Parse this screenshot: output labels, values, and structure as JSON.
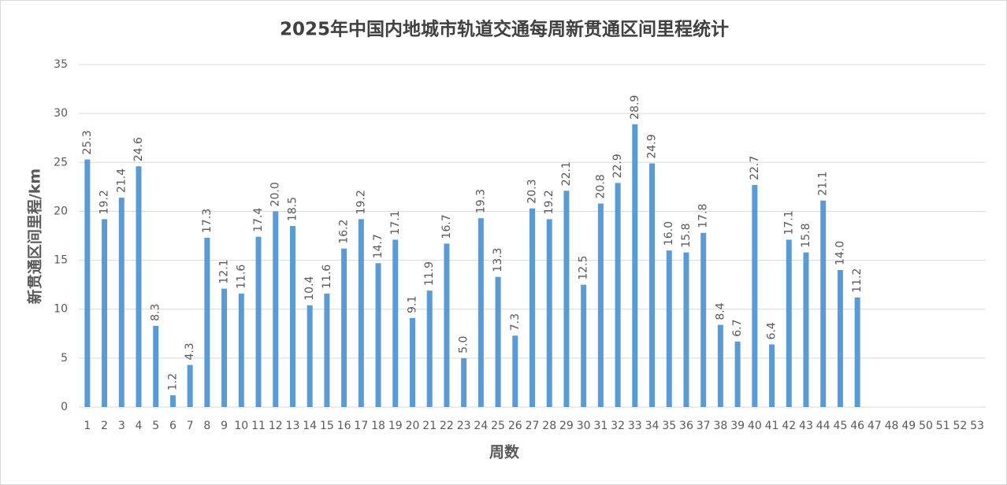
{
  "chart_data": {
    "type": "bar",
    "title": "2025年中国内地城市轨道交通每周新贯通区间里程统计",
    "x_label": "周数",
    "y_label": "新贯通区间里程/km",
    "categories": [
      "1",
      "2",
      "3",
      "4",
      "5",
      "6",
      "7",
      "8",
      "9",
      "10",
      "11",
      "12",
      "13",
      "14",
      "15",
      "16",
      "17",
      "18",
      "19",
      "20",
      "21",
      "22",
      "23",
      "24",
      "25",
      "26",
      "27",
      "28",
      "29",
      "30",
      "31",
      "32",
      "33",
      "34",
      "35",
      "36",
      "37",
      "38",
      "39",
      "40",
      "41",
      "42",
      "43",
      "44",
      "45",
      "46",
      "47",
      "48",
      "49",
      "50",
      "51",
      "52",
      "53"
    ],
    "values": [
      25.3,
      19.2,
      21.4,
      24.6,
      8.3,
      1.2,
      4.3,
      17.3,
      12.1,
      11.6,
      17.4,
      20.0,
      18.5,
      10.4,
      11.6,
      16.2,
      19.2,
      14.7,
      17.1,
      9.1,
      11.9,
      16.7,
      5.0,
      19.3,
      13.3,
      7.3,
      20.3,
      19.2,
      22.1,
      12.5,
      20.8,
      22.9,
      28.9,
      24.9,
      16.0,
      15.8,
      17.8,
      8.4,
      6.7,
      22.7,
      6.4,
      17.1,
      15.8,
      21.1,
      14.0,
      11.2,
      null,
      null,
      null,
      null,
      null,
      null,
      null
    ],
    "value_labels": [
      "25.3",
      "19.2",
      "21.4",
      "24.6",
      "8.3",
      "1.2",
      "4.3",
      "17.3",
      "12.1",
      "11.6",
      "17.4",
      "20.0",
      "18.5",
      "10.4",
      "11.6",
      "16.2",
      "19.2",
      "14.7",
      "17.1",
      "9.1",
      "11.9",
      "16.7",
      "5.0",
      "19.3",
      "13.3",
      "7.3",
      "20.3",
      "19.2",
      "22.1",
      "12.5",
      "20.8",
      "22.9",
      "28.9",
      "24.9",
      "16.0",
      "15.8",
      "17.8",
      "8.4",
      "6.7",
      "22.7",
      "6.4",
      "17.1",
      "15.8",
      "21.1",
      "14.0",
      "11.2",
      null,
      null,
      null,
      null,
      null,
      null,
      null
    ],
    "color": "#5b9bd5",
    "ylim": [
      0,
      35
    ],
    "yticks": [
      0,
      5,
      10,
      15,
      20,
      25,
      30,
      35
    ],
    "grid": true
  }
}
